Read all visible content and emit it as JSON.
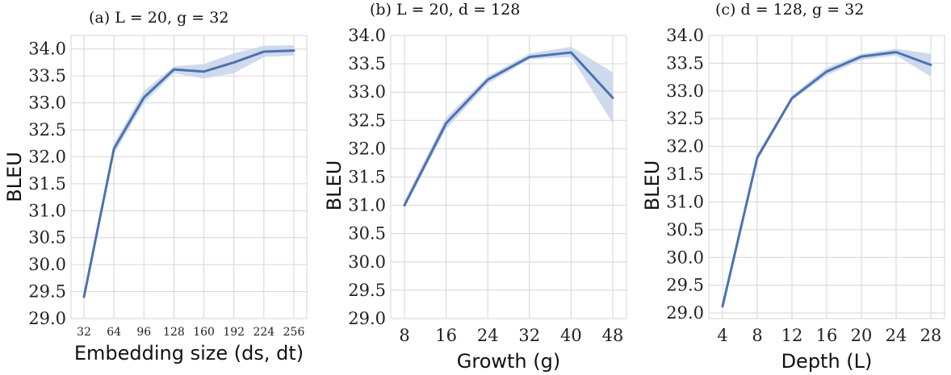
{
  "chart_data": [
    {
      "type": "line",
      "title": "(a) L = 20,  g = 32",
      "xlabel": "Embedding size (ds, dt)",
      "ylabel": "BLEU",
      "x": [
        32,
        64,
        96,
        128,
        160,
        192,
        224,
        256
      ],
      "xticks": [
        "32",
        "64",
        "96",
        "128",
        "160",
        "192",
        "224",
        "256"
      ],
      "yticks": [
        "29.0",
        "29.5",
        "30.0",
        "30.5",
        "31.0",
        "31.5",
        "32.0",
        "32.5",
        "33.0",
        "33.5",
        "34.0"
      ],
      "ylim": [
        29.0,
        34.25
      ],
      "series": [
        {
          "values": [
            29.4,
            32.15,
            33.1,
            33.62,
            33.58,
            33.75,
            33.95,
            33.97
          ],
          "lower": [
            29.38,
            32.05,
            33.0,
            33.55,
            33.45,
            33.55,
            33.85,
            33.88
          ],
          "upper": [
            29.42,
            32.25,
            33.22,
            33.68,
            33.72,
            33.92,
            34.06,
            34.07
          ]
        }
      ],
      "grid": true,
      "line_color": "#4c72b0",
      "band_color": "#c7d3ea"
    },
    {
      "type": "line",
      "title": "(b) L = 20,  d = 128",
      "xlabel": "Growth (g)",
      "ylabel": "BLEU",
      "x": [
        8,
        16,
        24,
        32,
        40,
        48
      ],
      "xticks": [
        "8",
        "16",
        "24",
        "32",
        "40",
        "48"
      ],
      "yticks": [
        "29.0",
        "29.5",
        "30.0",
        "30.5",
        "31.0",
        "31.5",
        "32.0",
        "32.5",
        "33.0",
        "33.5",
        "34.0"
      ],
      "ylim": [
        29.0,
        34.0
      ],
      "series": [
        {
          "values": [
            31.0,
            32.45,
            33.22,
            33.62,
            33.7,
            32.9
          ],
          "lower": [
            30.95,
            32.35,
            33.15,
            33.58,
            33.62,
            32.45
          ],
          "upper": [
            31.08,
            32.55,
            33.28,
            33.68,
            33.8,
            33.35
          ]
        }
      ],
      "grid": true,
      "line_color": "#4c72b0",
      "band_color": "#c7d3ea"
    },
    {
      "type": "line",
      "title": "(c) d = 128,  g = 32",
      "xlabel": "Depth (L)",
      "ylabel": "BLEU",
      "x": [
        4,
        8,
        12,
        16,
        20,
        24,
        28
      ],
      "xticks": [
        "4",
        "8",
        "12",
        "16",
        "20",
        "24",
        "28"
      ],
      "yticks": [
        "29.0",
        "29.5",
        "30.0",
        "30.5",
        "31.0",
        "31.5",
        "32.0",
        "32.5",
        "33.0",
        "33.5",
        "34.0"
      ],
      "ylim": [
        28.9,
        34.0
      ],
      "series": [
        {
          "values": [
            29.12,
            31.8,
            32.87,
            33.35,
            33.62,
            33.7,
            33.47
          ],
          "lower": [
            29.1,
            31.74,
            32.83,
            33.28,
            33.56,
            33.64,
            33.26
          ],
          "upper": [
            29.14,
            31.86,
            32.92,
            33.42,
            33.67,
            33.76,
            33.67
          ]
        }
      ],
      "grid": true,
      "line_color": "#4c72b0",
      "band_color": "#c7d3ea"
    }
  ]
}
